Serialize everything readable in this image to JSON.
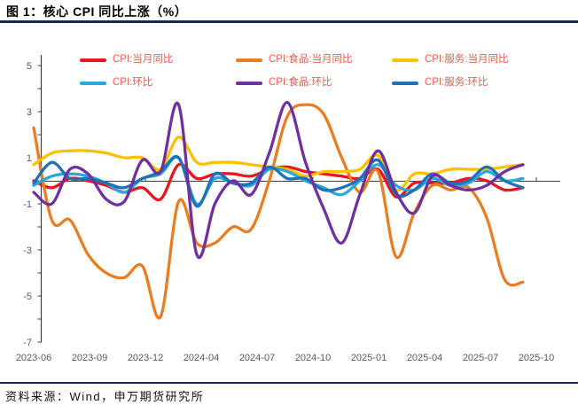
{
  "figure": {
    "title": "图 1：核心 CPI 同比上涨（%）"
  },
  "source": {
    "text": "资料来源：Wind，申万期货研究所"
  },
  "colors": {
    "header_rule": "#182463",
    "legend_text": "#e4604e",
    "axis_line": "#404040",
    "tick_label": "#595959",
    "background": "#ffffff"
  },
  "chart_data": {
    "type": "line",
    "title": "图 1：核心 CPI 同比上涨（%）",
    "xlabel": "",
    "ylabel": "",
    "ylim": [
      -7,
      5.5
    ],
    "y_ticks": [
      5,
      3,
      1,
      -1,
      -3,
      -5,
      -7
    ],
    "grid": false,
    "legend_position": "top",
    "x_tick_labels": [
      "2023-06",
      "2023-09",
      "2023-12",
      "2024-04",
      "2024-07",
      "2024-10",
      "2025-01",
      "2025-04",
      "2025-07",
      "2025-10"
    ],
    "x": [
      "2023-06",
      "2023-07",
      "2023-08",
      "2023-09",
      "2023-10",
      "2023-11",
      "2023-12",
      "2024-01",
      "2024-02",
      "2024-03",
      "2024-04",
      "2024-05",
      "2024-06",
      "2024-07",
      "2024-08",
      "2024-09",
      "2024-10",
      "2024-11",
      "2024-12",
      "2025-01",
      "2025-02",
      "2025-03",
      "2025-04",
      "2025-05",
      "2025-06",
      "2025-07",
      "2025-08",
      "2025-09"
    ],
    "series": [
      {
        "key": "cpi-yoy",
        "name": "CPI:当月同比",
        "color": "#e8161e",
        "values": [
          0.0,
          -0.3,
          0.1,
          0.0,
          -0.2,
          -0.5,
          -0.3,
          -0.8,
          0.7,
          0.1,
          0.3,
          0.3,
          0.2,
          0.5,
          0.6,
          0.4,
          0.3,
          0.2,
          0.1,
          0.5,
          -0.7,
          -0.1,
          -0.1,
          -0.1,
          0.1,
          0.0,
          -0.4,
          -0.3
        ]
      },
      {
        "key": "cpi-food-yoy",
        "name": "CPI:食品:当月同比",
        "color": "#e87d22",
        "values": [
          2.3,
          -1.7,
          -1.7,
          -3.2,
          -4.0,
          -4.2,
          -3.7,
          -5.9,
          -0.9,
          -2.7,
          -2.7,
          -2.0,
          -2.1,
          0.0,
          2.8,
          3.3,
          2.9,
          1.0,
          -0.5,
          0.4,
          -3.3,
          -1.4,
          -0.2,
          -0.4,
          -0.3,
          -1.6,
          -4.3,
          -4.4
        ]
      },
      {
        "key": "cpi-services-yoy",
        "name": "CPI:服务:当月同比",
        "color": "#ffc000",
        "values": [
          0.7,
          1.2,
          1.3,
          1.3,
          1.2,
          1.0,
          1.0,
          0.5,
          1.9,
          0.8,
          0.8,
          0.8,
          0.7,
          0.6,
          0.5,
          0.2,
          0.4,
          0.4,
          0.5,
          1.1,
          -0.4,
          0.3,
          0.3,
          0.5,
          0.5,
          0.5,
          0.6,
          0.7
        ]
      },
      {
        "key": "cpi-mom",
        "name": "CPI:环比",
        "color": "#29a8e0",
        "values": [
          -0.2,
          0.2,
          0.3,
          0.2,
          -0.1,
          -0.5,
          0.1,
          0.3,
          1.0,
          -1.0,
          0.1,
          -0.1,
          -0.2,
          0.5,
          0.4,
          0.0,
          -0.3,
          -0.6,
          0.0,
          0.7,
          -0.2,
          -0.4,
          0.1,
          -0.2,
          -0.1,
          0.4,
          0.0,
          0.1
        ]
      },
      {
        "key": "cpi-food-mom",
        "name": "CPI:食品:环比",
        "color": "#7030a0",
        "values": [
          -0.5,
          -1.0,
          0.5,
          0.3,
          -0.8,
          -0.9,
          0.9,
          0.4,
          3.3,
          -3.2,
          -1.0,
          0.0,
          -0.6,
          1.2,
          3.4,
          0.8,
          -1.2,
          -2.7,
          -0.6,
          1.3,
          -0.5,
          -1.4,
          0.2,
          -0.2,
          -0.4,
          -0.2,
          0.4,
          0.7
        ]
      },
      {
        "key": "cpi-services-mom",
        "name": "CPI:服务:环比",
        "color": "#2170b8",
        "values": [
          -0.1,
          0.8,
          0.1,
          0.1,
          -0.1,
          -0.3,
          0.1,
          0.4,
          1.0,
          -1.1,
          0.3,
          -0.1,
          -0.1,
          0.6,
          0.1,
          0.1,
          -0.4,
          -0.3,
          0.1,
          0.9,
          -0.6,
          -0.4,
          0.3,
          -0.1,
          0.0,
          0.6,
          0.0,
          -0.3
        ]
      }
    ]
  }
}
